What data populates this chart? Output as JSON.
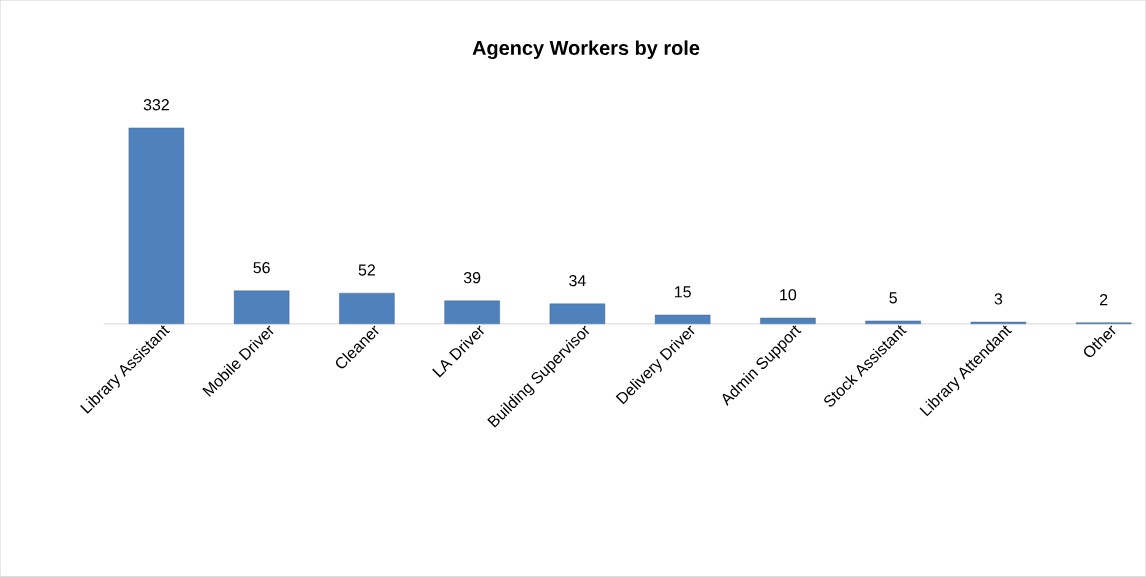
{
  "chart_data": {
    "type": "bar",
    "title": "Agency Workers by role",
    "categories": [
      "Library Assistant",
      "Mobile Driver",
      "Cleaner",
      "LA Driver",
      "Building Supervisor",
      "Delivery Driver",
      "Admin Support",
      "Stock Assistant",
      "Library Attendant",
      "Other"
    ],
    "values": [
      332,
      56,
      52,
      39,
      34,
      15,
      10,
      5,
      3,
      2
    ],
    "color": "#4f81bd",
    "data_labels": true
  }
}
